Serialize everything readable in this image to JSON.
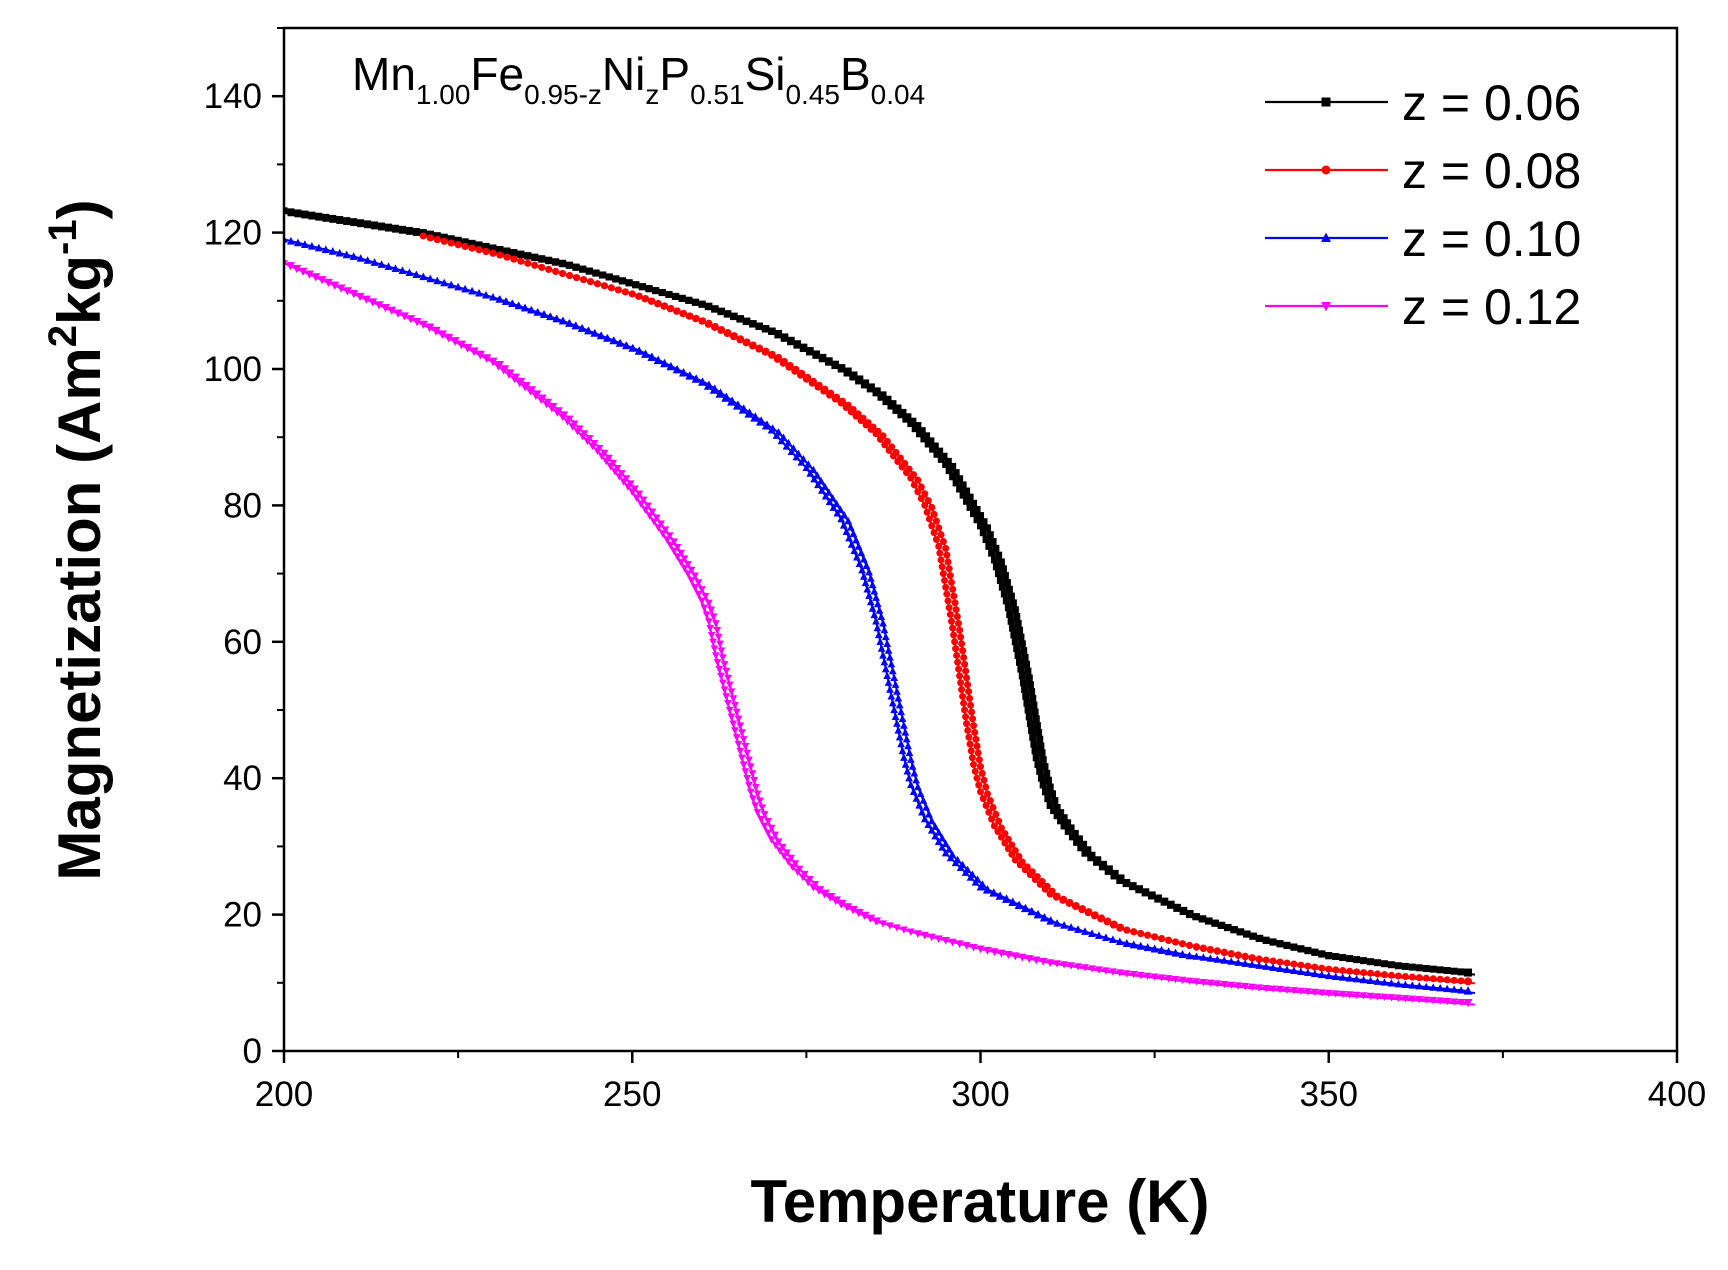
{
  "chart_data": {
    "type": "line",
    "title_parts": [
      {
        "text": "Mn",
        "sub": false
      },
      {
        "text": "1.00",
        "sub": true
      },
      {
        "text": "Fe",
        "sub": false
      },
      {
        "text": "0.95-z",
        "sub": true
      },
      {
        "text": "Ni",
        "sub": false
      },
      {
        "text": "z",
        "sub": true
      },
      {
        "text": "P",
        "sub": false
      },
      {
        "text": "0.51",
        "sub": true
      },
      {
        "text": "Si",
        "sub": false
      },
      {
        "text": "0.45",
        "sub": true
      },
      {
        "text": "B",
        "sub": false
      },
      {
        "text": "0.04",
        "sub": true
      }
    ],
    "xlabel": "Temperature (K)",
    "ylabel_parts": [
      {
        "text": "Magnetization (Am",
        "sup": false
      },
      {
        "text": "2",
        "sup": true
      },
      {
        "text": "kg",
        "sup": false
      },
      {
        "text": "-1",
        "sup": true
      },
      {
        "text": ")",
        "sup": false
      }
    ],
    "xlim": [
      200,
      400
    ],
    "ylim": [
      0,
      150
    ],
    "xticks": [
      200,
      250,
      300,
      350,
      400
    ],
    "yticks": [
      0,
      20,
      40,
      60,
      80,
      100,
      120,
      140
    ],
    "grid": false,
    "legend_position": "top-right",
    "series": [
      {
        "name": "z = 0.06",
        "color": "#000000",
        "marker": "square",
        "x": [
          200,
          220,
          240,
          260,
          270,
          280,
          285,
          290,
          295,
          300,
          302,
          304,
          305,
          306,
          307,
          308,
          309,
          310,
          312,
          315,
          320,
          330,
          340,
          350,
          360,
          370
        ],
        "y": [
          123.2,
          120,
          115.5,
          109.5,
          105.5,
          100,
          96.5,
          92,
          86,
          77,
          72,
          65,
          60,
          55,
          49,
          43,
          39,
          36,
          33,
          29,
          25,
          20,
          16.5,
          14,
          12.5,
          11.5
        ]
      },
      {
        "name": "z = 0.08",
        "color": "#ff0000",
        "marker": "circle",
        "x": [
          220,
          230,
          240,
          250,
          260,
          270,
          280,
          285,
          290,
          292,
          294,
          295,
          296,
          297,
          298,
          299,
          300,
          302,
          305,
          310,
          320,
          330,
          340,
          350,
          360,
          370
        ],
        "y": [
          119.5,
          117,
          114,
          111,
          107,
          102,
          95,
          90.5,
          84,
          80,
          74,
          68,
          62,
          55,
          48,
          42,
          38,
          33,
          28,
          23,
          18,
          15.5,
          13.5,
          12,
          11,
          10.2
        ]
      },
      {
        "name": "z = 0.10",
        "color": "#0000ff",
        "marker": "triangle-up",
        "x": [
          200,
          210,
          220,
          230,
          240,
          250,
          260,
          270,
          275,
          280,
          283,
          285,
          286,
          287,
          288,
          289,
          290,
          292,
          295,
          300,
          310,
          320,
          330,
          340,
          350,
          360,
          370
        ],
        "y": [
          119,
          116.5,
          113.5,
          110.5,
          107,
          103,
          98,
          91,
          85.5,
          78,
          70.5,
          63,
          58,
          53,
          48,
          43,
          39,
          34,
          29,
          24,
          19,
          16,
          14,
          12.5,
          11,
          9.8,
          8.8
        ]
      },
      {
        "name": "z = 0.12",
        "color": "#ff00ff",
        "marker": "triangle-down",
        "x": [
          200,
          210,
          220,
          230,
          240,
          245,
          250,
          255,
          258,
          260,
          261,
          262,
          263,
          264,
          265,
          266,
          267,
          268,
          270,
          273,
          276,
          280,
          285,
          290,
          300,
          310,
          320,
          330,
          340,
          350,
          360,
          370
        ],
        "y": [
          115.5,
          111,
          106.5,
          101,
          93,
          88,
          82,
          75,
          70,
          66,
          63,
          58,
          54,
          50,
          46,
          42,
          38,
          35,
          31,
          27,
          24,
          21.5,
          19,
          17.5,
          15,
          13,
          11.5,
          10.3,
          9.3,
          8.5,
          7.8,
          7.1
        ]
      }
    ]
  }
}
